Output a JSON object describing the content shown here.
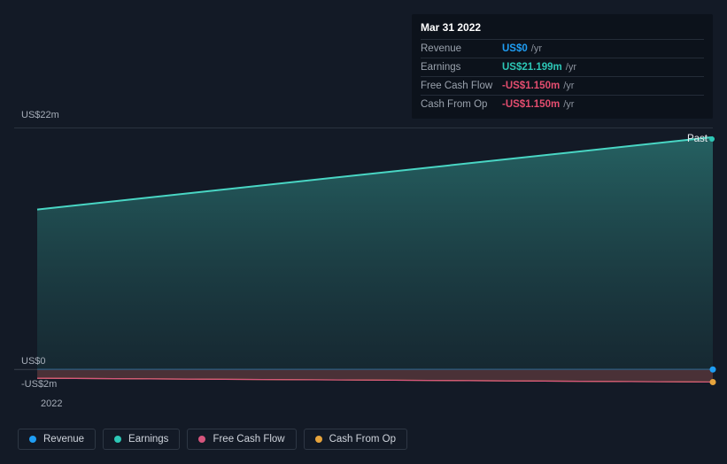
{
  "tooltip": {
    "date": "Mar 31 2022",
    "rows": [
      {
        "label": "Revenue",
        "value": "US$0",
        "unit": "/yr",
        "color": "#1f9ef4"
      },
      {
        "label": "Earnings",
        "value": "US$21.199m",
        "unit": "/yr",
        "color": "#2dc7b6"
      },
      {
        "label": "Free Cash Flow",
        "value": "-US$1.150m",
        "unit": "/yr",
        "color": "#e44d6f"
      },
      {
        "label": "Cash From Op",
        "value": "-US$1.150m",
        "unit": "/yr",
        "color": "#e44d6f"
      }
    ]
  },
  "chart": {
    "type": "line-area",
    "background_color": "#131a26",
    "grid_color": "#2a3340",
    "y_axis": {
      "top_label": {
        "text": "US$22m",
        "value": 22
      },
      "zero_label": {
        "text": "US$0",
        "value": 0
      },
      "bottom_label": {
        "text": "-US$2m",
        "value": -2
      }
    },
    "x_axis": {
      "labels": [
        "2022"
      ],
      "range": [
        0,
        1
      ]
    },
    "y_range": [
      -2,
      22
    ],
    "past_marker": {
      "text": "Past",
      "color": "#2dc7b6"
    },
    "series": {
      "earnings": {
        "color": "#49d6c4",
        "area_top_color": "rgba(45,127,123,0.70)",
        "area_bottom_color": "rgba(26,58,64,0.45)",
        "start_x_frac": 0.033,
        "points": [
          {
            "x": 0.033,
            "y": 14.6
          },
          {
            "x": 1.0,
            "y": 21.199
          }
        ]
      },
      "revenue": {
        "color": "#1f9ef4",
        "points": [
          {
            "x": 0.033,
            "y": 0
          },
          {
            "x": 1.0,
            "y": 0
          }
        ]
      },
      "free_cash_flow": {
        "color": "#d6557d",
        "band_color": "rgba(120,70,70,0.55)",
        "points": [
          {
            "x": 0.033,
            "y": -0.8
          },
          {
            "x": 1.0,
            "y": -1.15
          }
        ]
      },
      "cash_from_op": {
        "color": "#e7a43c",
        "points": [
          {
            "x": 0.033,
            "y": -0.8
          },
          {
            "x": 1.0,
            "y": -1.15
          }
        ]
      }
    }
  },
  "legend": [
    {
      "label": "Revenue",
      "color": "#1f9ef4"
    },
    {
      "label": "Earnings",
      "color": "#2dc7b6"
    },
    {
      "label": "Free Cash Flow",
      "color": "#d6557d"
    },
    {
      "label": "Cash From Op",
      "color": "#e7a43c"
    }
  ]
}
